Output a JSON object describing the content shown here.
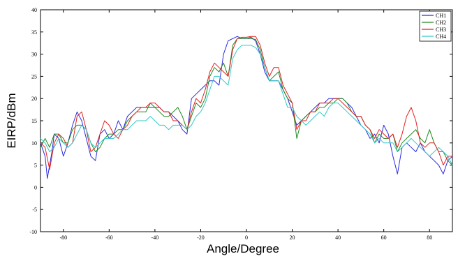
{
  "chart_data": {
    "type": "line",
    "title": "",
    "xlabel": "Angle/Degree",
    "ylabel": "EIRP/dBm",
    "xlim": [
      -90,
      90
    ],
    "ylim": [
      -10,
      40
    ],
    "xticks": [
      -80,
      -60,
      -40,
      -20,
      0,
      20,
      40,
      60,
      80
    ],
    "yticks": [
      -10,
      -5,
      0,
      5,
      10,
      15,
      20,
      25,
      30,
      35,
      40
    ],
    "grid": false,
    "legend_position": "top-right",
    "series": [
      {
        "name": "CH1",
        "color": "#2a2ae0",
        "x": [
          -90,
          -88,
          -87,
          -86,
          -85,
          -84,
          -82,
          -80,
          -78,
          -76,
          -74,
          -72,
          -70,
          -68,
          -66,
          -64,
          -62,
          -60,
          -58,
          -56,
          -54,
          -52,
          -50,
          -48,
          -46,
          -44,
          -42,
          -40,
          -38,
          -36,
          -34,
          -32,
          -30,
          -28,
          -26,
          -24,
          -22,
          -20,
          -18,
          -16,
          -14,
          -12,
          -10,
          -8,
          -6,
          -4,
          -2,
          0,
          2,
          4,
          6,
          8,
          10,
          12,
          14,
          16,
          18,
          20,
          22,
          24,
          26,
          28,
          30,
          32,
          34,
          36,
          38,
          40,
          42,
          44,
          46,
          48,
          50,
          52,
          54,
          56,
          58,
          60,
          62,
          64,
          66,
          68,
          70,
          72,
          74,
          76,
          78,
          80,
          82,
          84,
          86,
          88,
          90
        ],
        "values": [
          10,
          7,
          2,
          5,
          8,
          12,
          11,
          7,
          10,
          14,
          17,
          15,
          11,
          7,
          6,
          12,
          13,
          11,
          12,
          15,
          13,
          16,
          17,
          18,
          18,
          18,
          18,
          18,
          18,
          17,
          17,
          16,
          15,
          13,
          12,
          20,
          21,
          22,
          23,
          24,
          24,
          23,
          30,
          33,
          33.5,
          34,
          33.5,
          33.5,
          33.8,
          33,
          30,
          26,
          24,
          24,
          24,
          22,
          20,
          17,
          14,
          15,
          16,
          17,
          18,
          19,
          19,
          20,
          20,
          20,
          20,
          19,
          18,
          16,
          14,
          13,
          11,
          12,
          10,
          14,
          12,
          7,
          3,
          9,
          10,
          9,
          8,
          10,
          8,
          7,
          6,
          5,
          3,
          6,
          7
        ]
      },
      {
        "name": "CH2",
        "color": "#1f8a1f",
        "x": [
          -90,
          -88,
          -86,
          -84,
          -82,
          -80,
          -78,
          -76,
          -74,
          -72,
          -70,
          -68,
          -66,
          -64,
          -62,
          -60,
          -58,
          -56,
          -54,
          -52,
          -50,
          -48,
          -46,
          -44,
          -42,
          -40,
          -38,
          -36,
          -34,
          -32,
          -30,
          -28,
          -26,
          -24,
          -22,
          -20,
          -18,
          -16,
          -14,
          -12,
          -10,
          -8,
          -6,
          -4,
          -2,
          0,
          2,
          4,
          6,
          8,
          10,
          12,
          14,
          16,
          18,
          20,
          22,
          24,
          26,
          28,
          30,
          32,
          34,
          36,
          38,
          40,
          42,
          44,
          46,
          48,
          50,
          52,
          54,
          56,
          58,
          60,
          62,
          64,
          66,
          68,
          70,
          72,
          74,
          76,
          78,
          80,
          82,
          84,
          86,
          88,
          90
        ],
        "values": [
          9,
          11,
          9,
          12,
          12,
          10,
          10,
          13,
          14,
          14,
          13,
          10,
          8,
          9,
          11,
          12,
          12,
          13,
          13,
          15,
          16,
          17,
          17,
          17,
          19,
          18,
          17,
          16,
          16,
          17,
          18,
          16,
          13,
          16,
          19,
          18,
          20,
          25,
          27,
          26,
          28,
          25,
          32,
          33.5,
          33.5,
          33.5,
          33.5,
          33.3,
          31,
          27,
          24,
          25,
          26,
          22,
          20,
          19,
          11,
          15,
          16,
          17,
          17,
          18,
          18,
          19,
          19,
          20,
          20,
          19,
          17,
          16,
          16,
          14,
          13,
          10,
          12,
          11,
          11,
          12,
          8,
          10,
          11,
          12,
          13,
          11,
          10,
          13,
          10,
          8,
          8,
          6,
          5
        ]
      },
      {
        "name": "CH3",
        "color": "#e02020",
        "x": [
          -90,
          -88,
          -86,
          -84,
          -82,
          -80,
          -78,
          -76,
          -74,
          -72,
          -70,
          -68,
          -66,
          -64,
          -62,
          -60,
          -58,
          -56,
          -54,
          -52,
          -50,
          -48,
          -46,
          -44,
          -42,
          -40,
          -38,
          -36,
          -34,
          -32,
          -30,
          -28,
          -26,
          -24,
          -22,
          -20,
          -18,
          -16,
          -14,
          -12,
          -10,
          -8,
          -6,
          -4,
          -2,
          0,
          2,
          4,
          6,
          8,
          10,
          12,
          14,
          16,
          18,
          20,
          22,
          24,
          26,
          28,
          30,
          32,
          34,
          36,
          38,
          40,
          42,
          44,
          46,
          48,
          50,
          52,
          54,
          56,
          58,
          60,
          62,
          64,
          66,
          68,
          70,
          72,
          74,
          76,
          78,
          80,
          82,
          84,
          86,
          88,
          90
        ],
        "values": [
          10,
          9,
          4,
          10,
          12,
          11,
          9,
          10,
          16,
          17,
          13,
          8,
          9,
          12,
          15,
          14,
          12,
          11,
          13,
          14,
          16,
          17,
          18,
          18,
          19,
          19,
          18,
          17,
          17,
          15,
          15,
          14,
          13,
          17,
          20,
          19,
          22,
          26,
          28,
          27,
          26,
          25,
          31,
          33.5,
          33.8,
          33.8,
          34,
          34,
          32,
          28,
          25,
          27,
          27,
          23,
          21,
          19,
          13,
          15,
          15,
          17,
          17,
          19,
          19,
          19,
          20,
          20,
          19,
          18,
          17,
          16,
          16,
          14,
          13,
          11,
          13,
          12,
          11,
          12,
          9,
          12,
          16,
          18,
          15,
          10,
          9,
          10,
          10,
          8,
          5,
          7,
          7
        ]
      },
      {
        "name": "CH4",
        "color": "#30c8c8",
        "x": [
          -90,
          -88,
          -86,
          -84,
          -82,
          -80,
          -78,
          -76,
          -74,
          -72,
          -70,
          -68,
          -66,
          -64,
          -62,
          -60,
          -58,
          -56,
          -54,
          -52,
          -50,
          -48,
          -46,
          -44,
          -42,
          -40,
          -38,
          -36,
          -34,
          -32,
          -30,
          -28,
          -26,
          -24,
          -22,
          -20,
          -18,
          -16,
          -14,
          -12,
          -10,
          -8,
          -6,
          -4,
          -2,
          0,
          2,
          4,
          6,
          8,
          10,
          12,
          14,
          16,
          18,
          20,
          22,
          24,
          26,
          28,
          30,
          32,
          34,
          36,
          38,
          40,
          42,
          44,
          46,
          48,
          50,
          52,
          54,
          56,
          58,
          60,
          62,
          64,
          66,
          68,
          70,
          72,
          74,
          76,
          78,
          80,
          82,
          84,
          86,
          88,
          90
        ],
        "values": [
          11,
          10,
          8,
          9,
          11,
          10,
          9,
          10,
          12,
          14,
          13,
          10,
          9,
          10,
          11,
          11,
          11,
          12,
          13,
          13,
          14,
          15,
          15,
          15,
          16,
          15,
          14,
          14,
          13,
          14,
          14,
          14,
          13,
          14,
          16,
          17,
          19,
          22,
          25,
          25,
          24,
          23,
          29,
          31,
          32,
          32,
          32,
          31.5,
          30,
          27,
          24,
          24,
          24,
          21,
          18,
          18,
          16,
          15,
          14,
          15,
          16,
          17,
          16,
          18,
          19,
          19,
          18,
          17,
          16,
          15,
          14,
          13,
          12,
          10,
          11,
          10,
          10,
          10,
          8,
          9,
          10,
          11,
          10,
          9,
          8,
          7,
          8,
          9,
          8,
          7,
          5
        ]
      }
    ]
  }
}
